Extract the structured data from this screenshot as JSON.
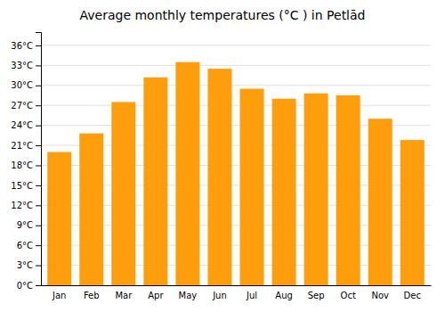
{
  "chart_data": {
    "type": "bar",
    "title": "Average monthly temperatures (°C ) in Petlād",
    "categories": [
      "Jan",
      "Feb",
      "Mar",
      "Apr",
      "May",
      "Jun",
      "Jul",
      "Aug",
      "Sep",
      "Oct",
      "Nov",
      "Dec"
    ],
    "values": [
      20.0,
      22.8,
      27.5,
      31.2,
      33.5,
      32.5,
      29.5,
      28.0,
      28.8,
      28.5,
      25.0,
      21.8
    ],
    "color": "#ff9e0d",
    "ylim": [
      0,
      38
    ],
    "yticks": [
      {
        "value": 0,
        "label": "0°C"
      },
      {
        "value": 3,
        "label": "3°C"
      },
      {
        "value": 6,
        "label": "6°C"
      },
      {
        "value": 9,
        "label": "9°C"
      },
      {
        "value": 12,
        "label": "12°C"
      },
      {
        "value": 15,
        "label": "15°C"
      },
      {
        "value": 18,
        "label": "18°C"
      },
      {
        "value": 21,
        "label": "21°C"
      },
      {
        "value": 24,
        "label": "24°C"
      },
      {
        "value": 27,
        "label": "27°C"
      },
      {
        "value": 30,
        "label": "30°C"
      },
      {
        "value": 33,
        "label": "33°C"
      },
      {
        "value": 36,
        "label": "36°C"
      }
    ],
    "grid": true
  }
}
